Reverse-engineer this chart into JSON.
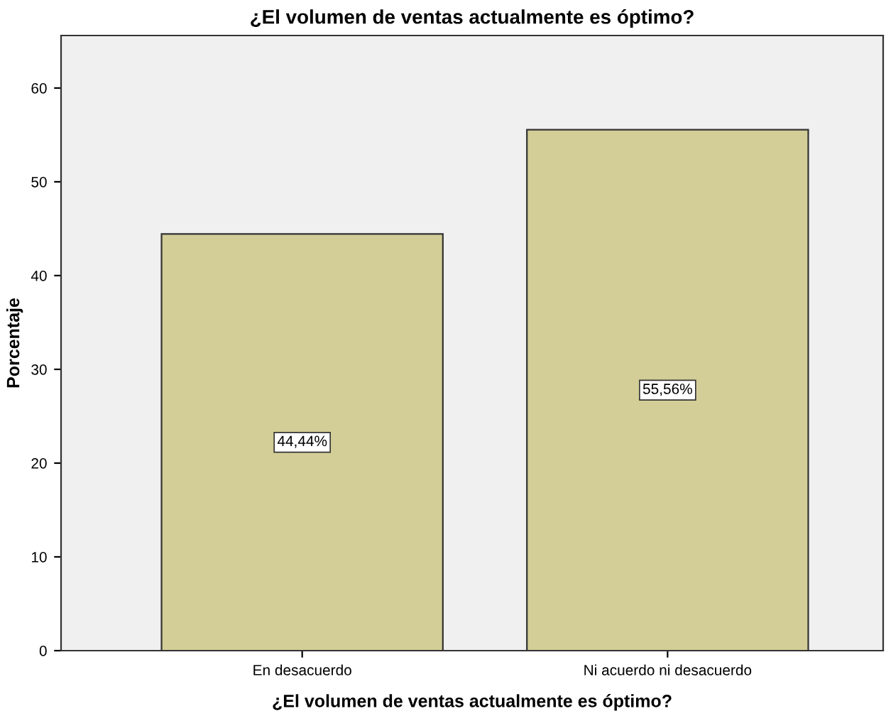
{
  "chart_data": {
    "type": "bar",
    "title": "¿El volumen de ventas actualmente es óptimo?",
    "xlabel": "¿El volumen de ventas actualmente es óptimo?",
    "ylabel": "Porcentaje",
    "categories": [
      "En desacuerdo",
      "Ni acuerdo ni desacuerdo"
    ],
    "values": [
      44.44,
      55.56
    ],
    "color": "#d3ce97",
    "value_labels": [
      "44,44%",
      "55,56%"
    ],
    "ylim": [
      0,
      65.6
    ],
    "yticks": [
      0,
      10,
      20,
      30,
      40,
      50,
      60
    ],
    "grid": false
  }
}
